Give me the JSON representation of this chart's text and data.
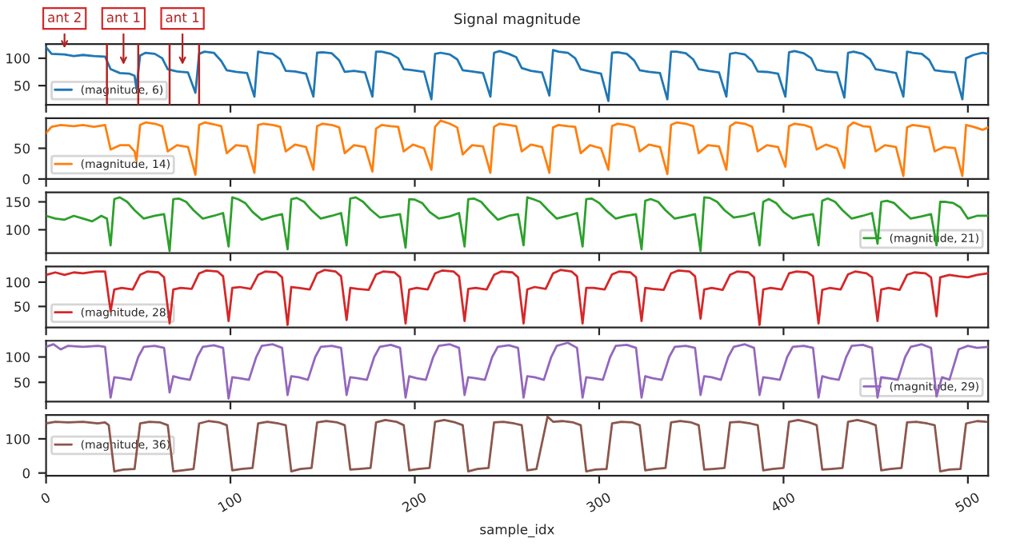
{
  "chart_data": [
    {
      "type": "line",
      "title": "Signal magnitude",
      "xlim": [
        0,
        511
      ],
      "xticks": [
        0,
        100,
        200,
        300,
        400,
        500
      ],
      "ylim": [
        15,
        126
      ],
      "yticks": [
        50,
        100
      ],
      "tick_labels": "y",
      "legend": "bottom left",
      "annotations": [
        {
          "text": "ant 2",
          "x": 10,
          "y": 110
        },
        {
          "text": "ant 1",
          "x": 42,
          "y": 80
        },
        {
          "text": "ant 1",
          "x": 74,
          "y": 80
        }
      ],
      "ref_lines": [
        {
          "axis": "x",
          "value": 33,
          "color": "#b22222"
        },
        {
          "axis": "x",
          "value": 50,
          "color": "#b22222"
        },
        {
          "axis": "x",
          "value": 67,
          "color": "#b22222"
        },
        {
          "axis": "x",
          "value": 83,
          "color": "#b22222"
        }
      ],
      "series": [
        {
          "name": "(magnitude, 6)",
          "color": "#1f77b4",
          "x": [
            0,
            3,
            10,
            15,
            20,
            26,
            32,
            35,
            40,
            45,
            48,
            49,
            51,
            54,
            59,
            63,
            66,
            71,
            77,
            81,
            83,
            86,
            91,
            95,
            98,
            103,
            109,
            113,
            115,
            118,
            123,
            127,
            130,
            135,
            141,
            145,
            147,
            150,
            155,
            159,
            162,
            167,
            173,
            177,
            179,
            182,
            187,
            191,
            194,
            199,
            205,
            209,
            211,
            214,
            219,
            223,
            226,
            231,
            237,
            241,
            243,
            246,
            251,
            255,
            258,
            263,
            269,
            273,
            275,
            278,
            283,
            287,
            290,
            295,
            301,
            305,
            307,
            310,
            315,
            319,
            322,
            327,
            333,
            337,
            339,
            342,
            347,
            351,
            354,
            359,
            365,
            369,
            371,
            374,
            379,
            383,
            386,
            391,
            397,
            401,
            403,
            406,
            411,
            415,
            418,
            423,
            429,
            433,
            435,
            438,
            443,
            447,
            450,
            455,
            461,
            465,
            467,
            470,
            475,
            479,
            482,
            487,
            493,
            497,
            499,
            503,
            508,
            511
          ],
          "values": [
            120,
            108,
            107,
            104,
            106,
            104,
            103,
            80,
            73,
            72,
            68,
            45,
            105,
            110,
            108,
            100,
            80,
            76,
            74,
            37,
            108,
            112,
            110,
            95,
            78,
            75,
            73,
            30,
            112,
            110,
            108,
            98,
            77,
            76,
            72,
            30,
            110,
            111,
            109,
            96,
            75,
            77,
            74,
            30,
            112,
            112,
            108,
            100,
            80,
            78,
            75,
            25,
            108,
            110,
            107,
            98,
            78,
            76,
            73,
            30,
            110,
            113,
            108,
            102,
            82,
            77,
            74,
            32,
            115,
            112,
            110,
            100,
            80,
            76,
            72,
            22,
            110,
            111,
            108,
            96,
            78,
            75,
            73,
            25,
            112,
            112,
            109,
            98,
            80,
            77,
            74,
            30,
            108,
            110,
            107,
            95,
            76,
            75,
            72,
            30,
            111,
            113,
            109,
            100,
            79,
            76,
            74,
            28,
            110,
            112,
            108,
            98,
            80,
            77,
            73,
            30,
            112,
            110,
            108,
            97,
            78,
            76,
            74,
            25,
            100,
            106,
            110,
            108
          ]
        }
      ]
    },
    {
      "type": "line",
      "xlim": [
        0,
        511
      ],
      "xticks": [
        0,
        100,
        200,
        300,
        400,
        500
      ],
      "ylim": [
        0,
        99
      ],
      "yticks": [
        0,
        50
      ],
      "tick_labels": "y",
      "legend": "bottom left",
      "series": [
        {
          "name": "(magnitude, 14)",
          "color": "#ff7f0e",
          "x": [
            0,
            3,
            8,
            15,
            20,
            26,
            32,
            35,
            40,
            45,
            48,
            49,
            51,
            54,
            59,
            63,
            66,
            71,
            77,
            81,
            83,
            86,
            91,
            95,
            98,
            103,
            109,
            113,
            115,
            118,
            123,
            127,
            130,
            135,
            141,
            145,
            147,
            150,
            155,
            159,
            162,
            167,
            173,
            177,
            179,
            182,
            187,
            191,
            194,
            199,
            205,
            209,
            211,
            214,
            219,
            223,
            226,
            231,
            237,
            241,
            243,
            246,
            251,
            255,
            258,
            263,
            269,
            273,
            275,
            278,
            283,
            287,
            290,
            295,
            301,
            305,
            307,
            310,
            315,
            319,
            322,
            327,
            333,
            337,
            339,
            342,
            347,
            351,
            354,
            359,
            365,
            369,
            371,
            374,
            379,
            383,
            386,
            391,
            397,
            401,
            403,
            406,
            411,
            415,
            418,
            423,
            429,
            433,
            435,
            438,
            443,
            447,
            450,
            455,
            461,
            465,
            467,
            470,
            475,
            479,
            482,
            487,
            493,
            497,
            499,
            503,
            508,
            511
          ],
          "values": [
            75,
            85,
            88,
            86,
            88,
            85,
            88,
            48,
            55,
            55,
            45,
            30,
            88,
            92,
            90,
            86,
            45,
            55,
            52,
            7,
            88,
            92,
            89,
            86,
            42,
            55,
            53,
            10,
            88,
            90,
            88,
            85,
            45,
            56,
            52,
            15,
            86,
            90,
            88,
            84,
            42,
            55,
            52,
            12,
            82,
            88,
            86,
            85,
            45,
            56,
            50,
            15,
            85,
            95,
            90,
            84,
            40,
            55,
            53,
            10,
            85,
            90,
            88,
            86,
            45,
            56,
            52,
            10,
            84,
            88,
            86,
            85,
            42,
            55,
            50,
            15,
            86,
            90,
            88,
            84,
            45,
            56,
            52,
            8,
            88,
            92,
            90,
            86,
            42,
            55,
            53,
            15,
            86,
            92,
            90,
            85,
            45,
            55,
            52,
            20,
            86,
            90,
            88,
            84,
            48,
            56,
            50,
            18,
            85,
            92,
            86,
            85,
            45,
            55,
            52,
            5,
            84,
            88,
            86,
            84,
            45,
            52,
            50,
            5,
            88,
            85,
            80,
            84
          ]
        }
      ]
    },
    {
      "type": "line",
      "xlim": [
        0,
        511
      ],
      "xticks": [
        0,
        100,
        200,
        300,
        400,
        500
      ],
      "ylim": [
        58,
        167
      ],
      "yticks": [
        100,
        150
      ],
      "tick_labels": "y",
      "legend": "bottom right",
      "series": [
        {
          "name": "(magnitude, 21)",
          "color": "#2ca02c",
          "x": [
            0,
            5,
            10,
            15,
            20,
            25,
            30,
            33,
            35,
            37,
            40,
            44,
            48,
            53,
            59,
            64,
            67,
            69,
            72,
            76,
            80,
            85,
            91,
            96,
            99,
            101,
            104,
            108,
            112,
            117,
            123,
            128,
            131,
            133,
            136,
            140,
            144,
            149,
            155,
            160,
            163,
            165,
            168,
            172,
            176,
            181,
            187,
            192,
            195,
            197,
            200,
            204,
            208,
            213,
            219,
            224,
            227,
            229,
            232,
            236,
            240,
            245,
            251,
            256,
            259,
            261,
            264,
            268,
            272,
            277,
            283,
            288,
            291,
            293,
            296,
            300,
            304,
            309,
            315,
            320,
            323,
            325,
            328,
            332,
            336,
            341,
            347,
            352,
            355,
            357,
            360,
            364,
            368,
            373,
            379,
            384,
            387,
            389,
            392,
            396,
            400,
            405,
            411,
            416,
            419,
            421,
            424,
            428,
            432,
            437,
            443,
            448,
            451,
            453,
            456,
            460,
            464,
            469,
            475,
            480,
            483,
            485,
            488,
            492,
            496,
            500,
            505,
            511
          ],
          "values": [
            125,
            120,
            118,
            125,
            120,
            115,
            125,
            120,
            72,
            155,
            158,
            150,
            135,
            120,
            125,
            128,
            62,
            155,
            156,
            150,
            135,
            120,
            125,
            130,
            70,
            158,
            155,
            148,
            132,
            118,
            124,
            128,
            65,
            155,
            157,
            150,
            135,
            120,
            125,
            130,
            72,
            156,
            158,
            150,
            136,
            122,
            125,
            128,
            68,
            155,
            154,
            148,
            132,
            120,
            124,
            130,
            70,
            155,
            156,
            150,
            135,
            118,
            125,
            128,
            72,
            158,
            155,
            150,
            136,
            120,
            125,
            130,
            70,
            155,
            156,
            148,
            134,
            120,
            125,
            128,
            65,
            152,
            155,
            150,
            135,
            120,
            124,
            128,
            62,
            158,
            157,
            150,
            135,
            122,
            125,
            130,
            72,
            150,
            155,
            148,
            132,
            120,
            125,
            128,
            72,
            152,
            156,
            150,
            135,
            120,
            125,
            130,
            75,
            150,
            152,
            148,
            135,
            120,
            124,
            128,
            72,
            150,
            150,
            148,
            140,
            120,
            125,
            125
          ]
        }
      ]
    },
    {
      "type": "line",
      "xlim": [
        0,
        511
      ],
      "xticks": [
        0,
        100,
        200,
        300,
        400,
        500
      ],
      "ylim": [
        7,
        132
      ],
      "yticks": [
        50,
        100
      ],
      "tick_labels": "y",
      "legend": "bottom left",
      "series": [
        {
          "name": "(magnitude, 28)",
          "color": "#d62728",
          "x": [
            0,
            5,
            10,
            15,
            20,
            27,
            32,
            35,
            37,
            41,
            47,
            51,
            55,
            61,
            64,
            67,
            69,
            73,
            79,
            83,
            87,
            93,
            96,
            99,
            101,
            105,
            111,
            115,
            119,
            125,
            128,
            131,
            133,
            137,
            143,
            147,
            151,
            157,
            160,
            163,
            165,
            169,
            175,
            179,
            183,
            189,
            192,
            195,
            197,
            201,
            207,
            211,
            215,
            221,
            224,
            227,
            229,
            233,
            239,
            243,
            247,
            253,
            256,
            259,
            261,
            265,
            271,
            275,
            279,
            285,
            288,
            291,
            293,
            297,
            303,
            307,
            311,
            317,
            320,
            323,
            325,
            329,
            335,
            339,
            343,
            349,
            352,
            355,
            357,
            361,
            367,
            371,
            375,
            381,
            384,
            387,
            389,
            393,
            399,
            403,
            407,
            413,
            416,
            419,
            421,
            425,
            431,
            435,
            439,
            445,
            448,
            451,
            453,
            457,
            463,
            467,
            471,
            477,
            480,
            483,
            485,
            490,
            495,
            500,
            505,
            511
          ],
          "values": [
            115,
            120,
            115,
            120,
            118,
            122,
            122,
            40,
            85,
            88,
            85,
            115,
            122,
            120,
            110,
            15,
            85,
            88,
            86,
            118,
            124,
            122,
            112,
            20,
            88,
            90,
            86,
            115,
            122,
            120,
            110,
            12,
            90,
            88,
            85,
            118,
            125,
            122,
            112,
            22,
            88,
            86,
            84,
            116,
            122,
            120,
            110,
            15,
            85,
            88,
            85,
            118,
            124,
            122,
            112,
            20,
            86,
            88,
            85,
            115,
            122,
            120,
            110,
            15,
            85,
            90,
            86,
            118,
            125,
            122,
            112,
            15,
            88,
            88,
            85,
            116,
            122,
            120,
            110,
            20,
            88,
            86,
            84,
            118,
            124,
            122,
            112,
            25,
            85,
            88,
            84,
            115,
            122,
            120,
            110,
            12,
            85,
            88,
            85,
            118,
            122,
            120,
            112,
            15,
            84,
            88,
            85,
            116,
            122,
            118,
            110,
            20,
            85,
            88,
            84,
            115,
            120,
            118,
            110,
            30,
            110,
            115,
            112,
            110,
            115,
            118
          ]
        }
      ]
    },
    {
      "type": "line",
      "xlim": [
        0,
        511
      ],
      "xticks": [
        0,
        100,
        200,
        300,
        400,
        500
      ],
      "ylim": [
        12,
        132
      ],
      "yticks": [
        50,
        100
      ],
      "tick_labels": "y",
      "legend": "bottom right",
      "series": [
        {
          "name": "(magnitude, 29)",
          "color": "#9467bd",
          "x": [
            0,
            4,
            8,
            12,
            20,
            28,
            32,
            35,
            37,
            41,
            46,
            50,
            53,
            59,
            64,
            67,
            69,
            73,
            78,
            82,
            85,
            91,
            96,
            99,
            101,
            105,
            110,
            114,
            117,
            123,
            128,
            131,
            133,
            137,
            142,
            146,
            149,
            155,
            160,
            163,
            165,
            169,
            174,
            178,
            181,
            187,
            192,
            195,
            197,
            201,
            206,
            210,
            213,
            219,
            224,
            227,
            229,
            233,
            238,
            242,
            245,
            251,
            256,
            259,
            261,
            265,
            270,
            274,
            277,
            283,
            288,
            291,
            293,
            297,
            302,
            306,
            309,
            315,
            320,
            323,
            325,
            329,
            334,
            338,
            341,
            347,
            352,
            355,
            357,
            361,
            366,
            370,
            373,
            379,
            384,
            387,
            389,
            393,
            398,
            402,
            405,
            411,
            416,
            419,
            421,
            425,
            430,
            434,
            437,
            443,
            448,
            451,
            453,
            457,
            462,
            466,
            469,
            475,
            480,
            483,
            486,
            490,
            495,
            500,
            505,
            511
          ],
          "values": [
            120,
            125,
            115,
            122,
            120,
            122,
            120,
            20,
            60,
            58,
            55,
            100,
            120,
            122,
            118,
            30,
            62,
            58,
            55,
            100,
            120,
            123,
            118,
            18,
            60,
            58,
            55,
            100,
            122,
            125,
            118,
            25,
            62,
            60,
            55,
            100,
            120,
            122,
            118,
            25,
            60,
            58,
            55,
            100,
            120,
            124,
            118,
            20,
            62,
            58,
            55,
            100,
            122,
            125,
            118,
            25,
            60,
            58,
            55,
            100,
            120,
            123,
            118,
            20,
            62,
            60,
            55,
            100,
            122,
            128,
            118,
            20,
            60,
            58,
            55,
            100,
            122,
            124,
            118,
            20,
            62,
            58,
            55,
            100,
            120,
            122,
            118,
            25,
            62,
            60,
            55,
            100,
            120,
            125,
            118,
            25,
            60,
            58,
            55,
            100,
            120,
            122,
            118,
            20,
            62,
            58,
            55,
            100,
            122,
            124,
            118,
            20,
            60,
            58,
            55,
            100,
            120,
            125,
            118,
            22,
            60,
            55,
            115,
            122,
            118,
            120
          ]
        }
      ]
    },
    {
      "type": "line",
      "xlim": [
        0,
        511
      ],
      "xticks": [
        0,
        100,
        200,
        300,
        400,
        500
      ],
      "ylim": [
        -8,
        170
      ],
      "yticks": [
        0,
        100
      ],
      "xlabel": "sample_idx",
      "legend": "left",
      "series": [
        {
          "name": "(magnitude, 36)",
          "color": "#8c564b",
          "x": [
            0,
            5,
            12,
            20,
            28,
            32,
            34,
            37,
            42,
            48,
            51,
            56,
            62,
            66,
            69,
            74,
            80,
            83,
            88,
            94,
            98,
            101,
            106,
            112,
            115,
            120,
            126,
            130,
            133,
            138,
            144,
            147,
            152,
            158,
            162,
            165,
            170,
            176,
            179,
            184,
            190,
            194,
            197,
            202,
            208,
            211,
            216,
            222,
            226,
            229,
            234,
            240,
            243,
            248,
            254,
            258,
            261,
            266,
            272,
            275,
            280,
            286,
            290,
            293,
            298,
            304,
            307,
            312,
            318,
            322,
            325,
            330,
            336,
            339,
            344,
            350,
            354,
            357,
            362,
            368,
            371,
            376,
            382,
            386,
            389,
            394,
            400,
            403,
            408,
            414,
            418,
            421,
            426,
            432,
            435,
            440,
            446,
            450,
            453,
            458,
            464,
            467,
            472,
            478,
            482,
            485,
            490,
            496,
            499,
            505,
            510
          ],
          "values": [
            145,
            150,
            148,
            150,
            145,
            148,
            140,
            5,
            10,
            12,
            145,
            150,
            148,
            140,
            5,
            8,
            12,
            145,
            152,
            148,
            140,
            8,
            12,
            15,
            145,
            150,
            145,
            140,
            5,
            12,
            15,
            148,
            152,
            148,
            140,
            10,
            12,
            15,
            148,
            155,
            150,
            140,
            8,
            12,
            15,
            150,
            155,
            148,
            140,
            5,
            12,
            15,
            148,
            150,
            145,
            140,
            8,
            12,
            165,
            150,
            152,
            148,
            140,
            5,
            10,
            12,
            145,
            150,
            148,
            140,
            8,
            12,
            15,
            148,
            152,
            148,
            140,
            10,
            12,
            15,
            148,
            150,
            145,
            140,
            8,
            12,
            15,
            150,
            155,
            148,
            140,
            10,
            12,
            15,
            150,
            155,
            148,
            140,
            8,
            12,
            15,
            148,
            150,
            145,
            140,
            5,
            10,
            12,
            145,
            152,
            150
          ]
        }
      ]
    }
  ]
}
